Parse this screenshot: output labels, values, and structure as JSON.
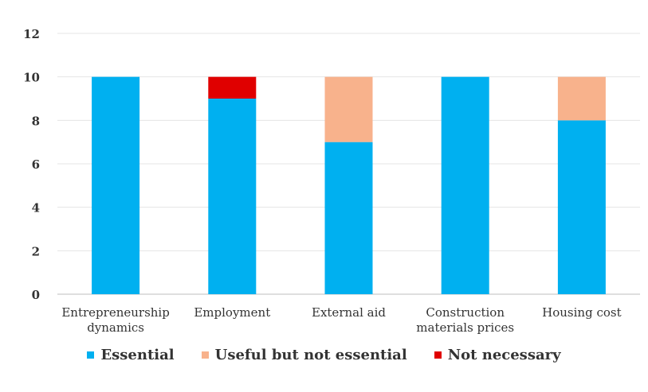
{
  "chart_data": {
    "type": "bar",
    "stacked": true,
    "categories": [
      "Entrepreneurship dynamics",
      "Employment",
      "External aid",
      "Construction materials prices",
      "Housing cost"
    ],
    "category_lines": [
      [
        "Entrepreneurship",
        "dynamics"
      ],
      [
        "Employment"
      ],
      [
        "External aid"
      ],
      [
        "Construction",
        "materials prices"
      ],
      [
        "Housing cost"
      ]
    ],
    "series": [
      {
        "name": "Essential",
        "color": "#00B0F0",
        "values": [
          10,
          9,
          7,
          10,
          8
        ]
      },
      {
        "name": "Useful but not essential",
        "color": "#F8B28C",
        "values": [
          0,
          0,
          3,
          0,
          2
        ]
      },
      {
        "name": "Not necessary",
        "color": "#E00000",
        "values": [
          0,
          1,
          0,
          0,
          0
        ]
      }
    ],
    "ylim": [
      0,
      12
    ],
    "yticks": [
      0,
      2,
      4,
      6,
      8,
      10,
      12
    ],
    "grid": true,
    "legend_position": "bottom"
  }
}
